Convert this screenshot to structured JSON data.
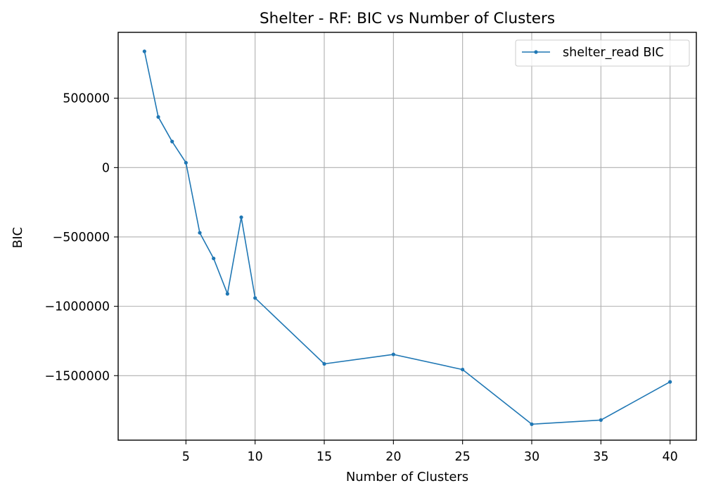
{
  "chart_data": {
    "type": "line",
    "title": "Shelter - RF: BIC vs Number of Clusters",
    "xlabel": "Number of Clusters",
    "ylabel": "BIC",
    "x": [
      2,
      3,
      4,
      5,
      6,
      7,
      8,
      9,
      10,
      15,
      20,
      25,
      30,
      35,
      40
    ],
    "series": [
      {
        "name": "shelter_read BIC",
        "color": "#1f77b4",
        "values": [
          838000,
          365000,
          188000,
          35000,
          -470000,
          -655000,
          -910000,
          -358000,
          -940000,
          -1415000,
          -1347000,
          -1456000,
          -1850000,
          -1820000,
          -1545000
        ]
      }
    ],
    "xlim": [
      0.1,
      41.9
    ],
    "ylim": [
      -1965000,
      975000
    ],
    "xticks": [
      5,
      10,
      15,
      20,
      25,
      30,
      35,
      40
    ],
    "xtick_labels": [
      "5",
      "10",
      "15",
      "20",
      "25",
      "30",
      "35",
      "40"
    ],
    "yticks": [
      500000,
      0,
      -500000,
      -1000000,
      -1500000
    ],
    "ytick_labels": [
      "500000",
      "0",
      "−500000",
      "−1000000",
      "−1500000"
    ],
    "grid": true,
    "legend_position": "top-right"
  }
}
